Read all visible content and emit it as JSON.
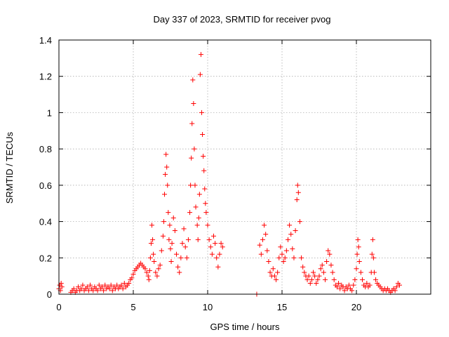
{
  "chart_data": {
    "type": "scatter",
    "title": "Day 337 of 2023, SRMTID for receiver pvog",
    "xlabel": "GPS time / hours",
    "ylabel": "SRMTID / TECUs",
    "xlim": [
      0,
      25
    ],
    "ylim": [
      0,
      1.4
    ],
    "xticks": [
      0,
      5,
      10,
      15,
      20
    ],
    "xtick_labels": [
      "0",
      "5",
      "10",
      "15",
      "20"
    ],
    "yticks": [
      0,
      0.2,
      0.4,
      0.6,
      0.8,
      1.0,
      1.2,
      1.4
    ],
    "ytick_labels": [
      "0",
      "0.2",
      "0.4",
      "0.6",
      "0.8",
      "1",
      "1.2",
      "1.4"
    ],
    "grid": true,
    "marker": "+",
    "color": "#ff0000",
    "series": [
      {
        "name": "SRMTID",
        "points": [
          [
            0.0,
            0.03
          ],
          [
            0.05,
            0.05
          ],
          [
            0.1,
            0.02
          ],
          [
            0.15,
            0.06
          ],
          [
            0.2,
            0.04
          ],
          [
            0.8,
            0.01
          ],
          [
            0.9,
            0.02
          ],
          [
            1.0,
            0.03
          ],
          [
            1.1,
            0.01
          ],
          [
            1.2,
            0.02
          ],
          [
            1.3,
            0.04
          ],
          [
            1.4,
            0.02
          ],
          [
            1.5,
            0.03
          ],
          [
            1.6,
            0.05
          ],
          [
            1.7,
            0.02
          ],
          [
            1.8,
            0.03
          ],
          [
            1.9,
            0.04
          ],
          [
            2.0,
            0.02
          ],
          [
            2.1,
            0.05
          ],
          [
            2.2,
            0.03
          ],
          [
            2.3,
            0.02
          ],
          [
            2.4,
            0.04
          ],
          [
            2.5,
            0.03
          ],
          [
            2.6,
            0.02
          ],
          [
            2.7,
            0.05
          ],
          [
            2.8,
            0.03
          ],
          [
            2.9,
            0.04
          ],
          [
            3.0,
            0.02
          ],
          [
            3.1,
            0.05
          ],
          [
            3.2,
            0.03
          ],
          [
            3.3,
            0.04
          ],
          [
            3.4,
            0.03
          ],
          [
            3.5,
            0.05
          ],
          [
            3.6,
            0.02
          ],
          [
            3.7,
            0.04
          ],
          [
            3.8,
            0.03
          ],
          [
            3.9,
            0.05
          ],
          [
            4.0,
            0.03
          ],
          [
            4.1,
            0.04
          ],
          [
            4.2,
            0.05
          ],
          [
            4.3,
            0.03
          ],
          [
            4.4,
            0.06
          ],
          [
            4.5,
            0.04
          ],
          [
            4.6,
            0.05
          ],
          [
            4.7,
            0.06
          ],
          [
            4.8,
            0.08
          ],
          [
            4.9,
            0.09
          ],
          [
            5.0,
            0.11
          ],
          [
            5.1,
            0.13
          ],
          [
            5.2,
            0.14
          ],
          [
            5.3,
            0.15
          ],
          [
            5.4,
            0.16
          ],
          [
            5.5,
            0.17
          ],
          [
            5.6,
            0.16
          ],
          [
            5.7,
            0.15
          ],
          [
            5.8,
            0.14
          ],
          [
            5.9,
            0.12
          ],
          [
            6.0,
            0.1
          ],
          [
            6.05,
            0.08
          ],
          [
            6.1,
            0.13
          ],
          [
            6.15,
            0.2
          ],
          [
            6.2,
            0.28
          ],
          [
            6.25,
            0.38
          ],
          [
            6.3,
            0.3
          ],
          [
            6.35,
            0.22
          ],
          [
            6.4,
            0.18
          ],
          [
            6.5,
            0.12
          ],
          [
            6.6,
            0.1
          ],
          [
            6.7,
            0.14
          ],
          [
            6.8,
            0.16
          ],
          [
            6.9,
            0.24
          ],
          [
            7.0,
            0.32
          ],
          [
            7.05,
            0.4
          ],
          [
            7.1,
            0.55
          ],
          [
            7.15,
            0.66
          ],
          [
            7.2,
            0.77
          ],
          [
            7.25,
            0.7
          ],
          [
            7.3,
            0.6
          ],
          [
            7.35,
            0.45
          ],
          [
            7.4,
            0.3
          ],
          [
            7.45,
            0.38
          ],
          [
            7.5,
            0.25
          ],
          [
            7.55,
            0.18
          ],
          [
            7.6,
            0.28
          ],
          [
            7.7,
            0.42
          ],
          [
            7.8,
            0.35
          ],
          [
            7.9,
            0.22
          ],
          [
            8.0,
            0.15
          ],
          [
            8.1,
            0.12
          ],
          [
            8.2,
            0.2
          ],
          [
            8.3,
            0.28
          ],
          [
            8.4,
            0.36
          ],
          [
            8.5,
            0.26
          ],
          [
            8.6,
            0.2
          ],
          [
            8.7,
            0.3
          ],
          [
            8.8,
            0.45
          ],
          [
            8.85,
            0.6
          ],
          [
            8.9,
            0.75
          ],
          [
            8.95,
            0.94
          ],
          [
            9.0,
            1.18
          ],
          [
            9.05,
            1.05
          ],
          [
            9.1,
            0.8
          ],
          [
            9.15,
            0.6
          ],
          [
            9.2,
            0.48
          ],
          [
            9.3,
            0.38
          ],
          [
            9.35,
            0.3
          ],
          [
            9.4,
            0.42
          ],
          [
            9.45,
            0.55
          ],
          [
            9.5,
            1.21
          ],
          [
            9.55,
            1.32
          ],
          [
            9.6,
            1.0
          ],
          [
            9.65,
            0.88
          ],
          [
            9.7,
            0.76
          ],
          [
            9.75,
            0.68
          ],
          [
            9.8,
            0.58
          ],
          [
            9.85,
            0.5
          ],
          [
            9.9,
            0.45
          ],
          [
            10.0,
            0.38
          ],
          [
            10.1,
            0.3
          ],
          [
            10.2,
            0.26
          ],
          [
            10.3,
            0.22
          ],
          [
            10.4,
            0.32
          ],
          [
            10.5,
            0.28
          ],
          [
            10.6,
            0.2
          ],
          [
            10.7,
            0.15
          ],
          [
            10.8,
            0.22
          ],
          [
            10.9,
            0.28
          ],
          [
            11.0,
            0.26
          ],
          [
            13.3,
            0.0
          ],
          [
            13.5,
            0.27
          ],
          [
            13.6,
            0.22
          ],
          [
            13.7,
            0.3
          ],
          [
            13.8,
            0.38
          ],
          [
            13.9,
            0.33
          ],
          [
            14.0,
            0.24
          ],
          [
            14.1,
            0.18
          ],
          [
            14.2,
            0.12
          ],
          [
            14.3,
            0.1
          ],
          [
            14.4,
            0.14
          ],
          [
            14.5,
            0.1
          ],
          [
            14.6,
            0.08
          ],
          [
            14.7,
            0.12
          ],
          [
            14.8,
            0.2
          ],
          [
            14.9,
            0.26
          ],
          [
            15.0,
            0.22
          ],
          [
            15.1,
            0.18
          ],
          [
            15.2,
            0.2
          ],
          [
            15.3,
            0.24
          ],
          [
            15.4,
            0.3
          ],
          [
            15.5,
            0.38
          ],
          [
            15.6,
            0.33
          ],
          [
            15.7,
            0.25
          ],
          [
            15.8,
            0.2
          ],
          [
            15.9,
            0.35
          ],
          [
            16.0,
            0.52
          ],
          [
            16.05,
            0.6
          ],
          [
            16.1,
            0.56
          ],
          [
            16.2,
            0.4
          ],
          [
            16.3,
            0.2
          ],
          [
            16.4,
            0.15
          ],
          [
            16.5,
            0.12
          ],
          [
            16.6,
            0.1
          ],
          [
            16.7,
            0.08
          ],
          [
            16.8,
            0.1
          ],
          [
            16.9,
            0.06
          ],
          [
            17.0,
            0.08
          ],
          [
            17.1,
            0.12
          ],
          [
            17.2,
            0.1
          ],
          [
            17.3,
            0.06
          ],
          [
            17.4,
            0.08
          ],
          [
            17.5,
            0.1
          ],
          [
            17.6,
            0.14
          ],
          [
            17.7,
            0.16
          ],
          [
            17.8,
            0.12
          ],
          [
            17.9,
            0.08
          ],
          [
            18.0,
            0.18
          ],
          [
            18.1,
            0.24
          ],
          [
            18.2,
            0.22
          ],
          [
            18.3,
            0.16
          ],
          [
            18.4,
            0.12
          ],
          [
            18.5,
            0.08
          ],
          [
            18.6,
            0.05
          ],
          [
            18.7,
            0.04
          ],
          [
            18.8,
            0.06
          ],
          [
            18.9,
            0.03
          ],
          [
            19.0,
            0.05
          ],
          [
            19.1,
            0.04
          ],
          [
            19.2,
            0.02
          ],
          [
            19.3,
            0.04
          ],
          [
            19.4,
            0.03
          ],
          [
            19.5,
            0.05
          ],
          [
            19.6,
            0.03
          ],
          [
            19.7,
            0.02
          ],
          [
            19.8,
            0.05
          ],
          [
            19.9,
            0.08
          ],
          [
            20.0,
            0.14
          ],
          [
            20.05,
            0.22
          ],
          [
            20.1,
            0.3
          ],
          [
            20.15,
            0.26
          ],
          [
            20.2,
            0.18
          ],
          [
            20.3,
            0.12
          ],
          [
            20.4,
            0.08
          ],
          [
            20.5,
            0.05
          ],
          [
            20.6,
            0.04
          ],
          [
            20.7,
            0.06
          ],
          [
            20.8,
            0.04
          ],
          [
            20.9,
            0.05
          ],
          [
            21.0,
            0.12
          ],
          [
            21.05,
            0.22
          ],
          [
            21.1,
            0.3
          ],
          [
            21.15,
            0.2
          ],
          [
            21.2,
            0.12
          ],
          [
            21.3,
            0.08
          ],
          [
            21.4,
            0.06
          ],
          [
            21.5,
            0.05
          ],
          [
            21.6,
            0.04
          ],
          [
            21.7,
            0.03
          ],
          [
            21.8,
            0.02
          ],
          [
            21.9,
            0.03
          ],
          [
            22.0,
            0.02
          ],
          [
            22.1,
            0.03
          ],
          [
            22.2,
            0.02
          ],
          [
            22.3,
            0.01
          ],
          [
            22.4,
            0.02
          ],
          [
            22.5,
            0.03
          ],
          [
            22.6,
            0.02
          ],
          [
            22.7,
            0.04
          ],
          [
            22.8,
            0.06
          ],
          [
            22.9,
            0.05
          ]
        ]
      }
    ]
  }
}
